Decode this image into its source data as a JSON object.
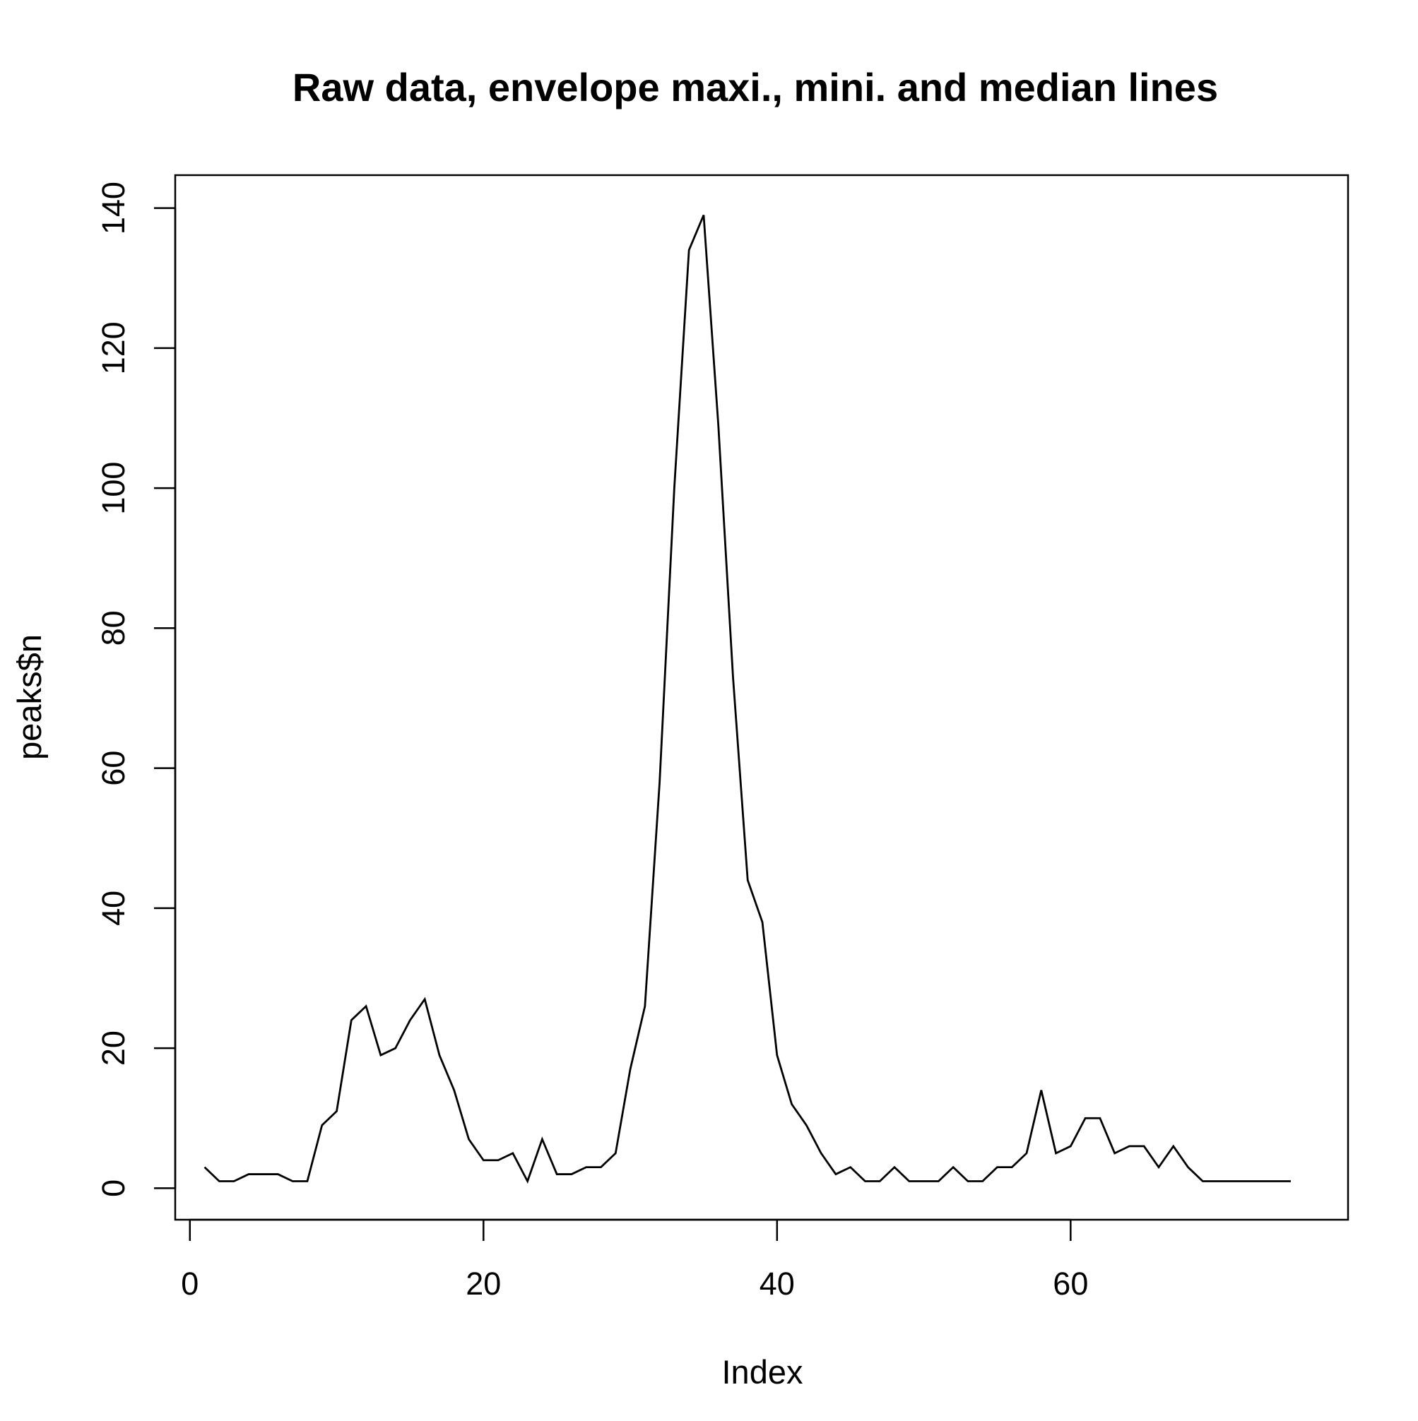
{
  "chart_data": {
    "type": "line",
    "title": "Raw data, envelope maxi., mini. and median lines",
    "xlabel": "Index",
    "ylabel": "peaks$n",
    "xlim": [
      -1,
      78.9
    ],
    "ylim": [
      -4.5,
      144.7
    ],
    "x_ticks": [
      0,
      20,
      40,
      60
    ],
    "y_ticks": [
      0,
      20,
      40,
      60,
      80,
      100,
      120,
      140
    ],
    "grid": false,
    "legend": "none",
    "line_color": "#000000",
    "x": [
      1,
      2,
      3,
      4,
      5,
      6,
      7,
      8,
      9,
      10,
      11,
      12,
      13,
      14,
      15,
      16,
      17,
      18,
      19,
      20,
      21,
      22,
      23,
      24,
      25,
      26,
      27,
      28,
      29,
      30,
      31,
      32,
      33,
      34,
      35,
      36,
      37,
      38,
      39,
      40,
      41,
      42,
      43,
      44,
      45,
      46,
      47,
      48,
      49,
      50,
      51,
      52,
      53,
      54,
      55,
      56,
      57,
      58,
      59,
      60,
      61,
      62,
      63,
      64,
      65,
      66,
      67,
      68,
      69,
      70,
      71,
      72,
      73,
      74,
      75
    ],
    "series": [
      {
        "values": [
          3,
          1,
          1,
          2,
          2,
          2,
          1,
          1,
          9,
          11,
          24,
          26,
          19,
          20,
          24,
          27,
          19,
          14,
          7,
          4,
          4,
          5,
          1,
          7,
          2,
          2,
          3,
          3,
          5,
          17,
          26,
          58,
          100,
          134,
          139,
          109,
          73,
          44,
          38,
          19,
          12,
          9,
          5,
          2,
          3,
          1,
          1,
          3,
          1,
          1,
          1,
          3,
          1,
          1,
          3,
          3,
          5,
          14,
          5,
          6,
          10,
          10,
          5,
          6,
          6,
          3,
          6,
          3,
          1,
          1,
          1,
          1,
          1,
          1,
          1
        ]
      }
    ]
  }
}
